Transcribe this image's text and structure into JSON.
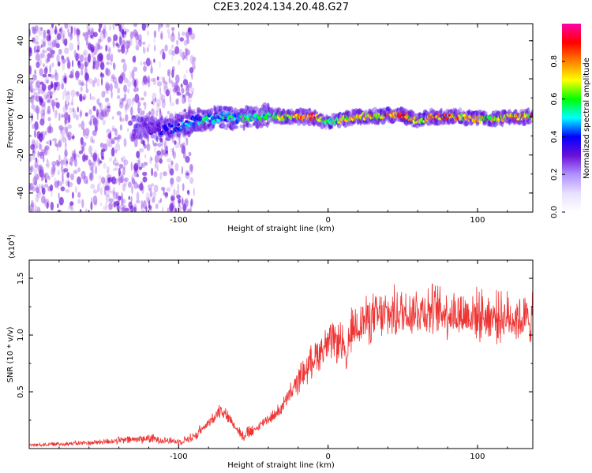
{
  "title": "C2E3.2024.134.20.48.G27",
  "colors": {
    "snr_line": "#ee3333",
    "scatter_purple": "#9a55e6",
    "scatter_dark": "#6a10d8"
  },
  "chart_data": [
    {
      "type": "heatmap",
      "xlabel": "Height of straight line (km)",
      "ylabel": "Frequency (Hz)",
      "xlim": [
        -200,
        137
      ],
      "ylim": [
        -50,
        49
      ],
      "xticks": [
        -100,
        0,
        100
      ],
      "xtick_labels": [
        "-100",
        "0",
        "100"
      ],
      "yticks": [
        -40,
        -20,
        0,
        20,
        40
      ],
      "ytick_labels": [
        "-40",
        "-20",
        "0",
        "20",
        "40"
      ],
      "colorbar": {
        "label": "Normalized spectral amplitude",
        "range": [
          0,
          1
        ],
        "ticks": [
          0.0,
          0.2,
          0.4,
          0.6,
          0.8
        ],
        "tick_labels": [
          "0.0",
          "0.2",
          "0.4",
          "0.6",
          "0.8"
        ],
        "stops": [
          "#ffffff",
          "#e8e0ff",
          "#b090ff",
          "#6a10d8",
          "#0000ff",
          "#00ffff",
          "#00ff00",
          "#ffff00",
          "#ff8000",
          "#ff0000",
          "#ff00aa"
        ]
      },
      "noise_region_x": [
        -200,
        -97
      ],
      "ridge": {
        "x": [
          -130,
          -120,
          -110,
          -100,
          -90,
          -80,
          -70,
          -60,
          -50,
          -40,
          -30,
          -20,
          -10,
          0,
          10,
          20,
          30,
          40,
          50,
          60,
          70,
          80,
          90,
          100,
          110,
          120,
          130,
          137
        ],
        "frequency": [
          -5,
          -6,
          -7,
          -5,
          -2,
          -1,
          0,
          -1,
          0,
          1,
          0,
          0,
          0,
          -3,
          -1,
          0,
          0,
          1,
          1,
          -2,
          0,
          0,
          0,
          -1,
          -1,
          0,
          0,
          0
        ],
        "amplitude": [
          0.25,
          0.3,
          0.35,
          0.45,
          0.5,
          0.55,
          0.5,
          0.55,
          0.6,
          0.55,
          0.7,
          0.85,
          0.9,
          0.6,
          0.75,
          0.8,
          0.8,
          0.85,
          0.85,
          0.75,
          0.8,
          0.85,
          0.8,
          0.75,
          0.75,
          0.8,
          0.8,
          0.8
        ]
      }
    },
    {
      "type": "line",
      "xlabel": "Height of straight line (km)",
      "ylabel": "SNR (10 * v/v)",
      "ylabel_exponent": "(x10",
      "ylabel_exponent_power": "4",
      "ylabel_exponent_close": ")",
      "xlim": [
        -200,
        137
      ],
      "ylim": [
        0,
        16600
      ],
      "xticks": [
        -100,
        0,
        100
      ],
      "xtick_labels": [
        "-100",
        "0",
        "100"
      ],
      "yticks": [
        5000,
        10000,
        15000
      ],
      "ytick_labels": [
        "0.5",
        "1.0",
        "1.5"
      ],
      "series": [
        {
          "x": [
            -200,
            -180,
            -160,
            -140,
            -120,
            -100,
            -90,
            -80,
            -72,
            -65,
            -58,
            -50,
            -42,
            -35,
            -28,
            -22,
            -18,
            -14,
            -10,
            -6,
            -2,
            2,
            6,
            10,
            12,
            14,
            16,
            20,
            30,
            40,
            50,
            60,
            70,
            80,
            90,
            100,
            110,
            120,
            130,
            137
          ],
          "values": [
            300,
            400,
            500,
            700,
            900,
            600,
            1000,
            2200,
            3500,
            2500,
            1200,
            1500,
            2500,
            3000,
            4200,
            5500,
            6500,
            7000,
            8000,
            8500,
            9000,
            9300,
            9400,
            9300,
            7000,
            9500,
            10500,
            11000,
            11500,
            11800,
            12000,
            12200,
            12200,
            12000,
            11800,
            11800,
            11600,
            11600,
            11400,
            11400
          ]
        }
      ]
    }
  ]
}
